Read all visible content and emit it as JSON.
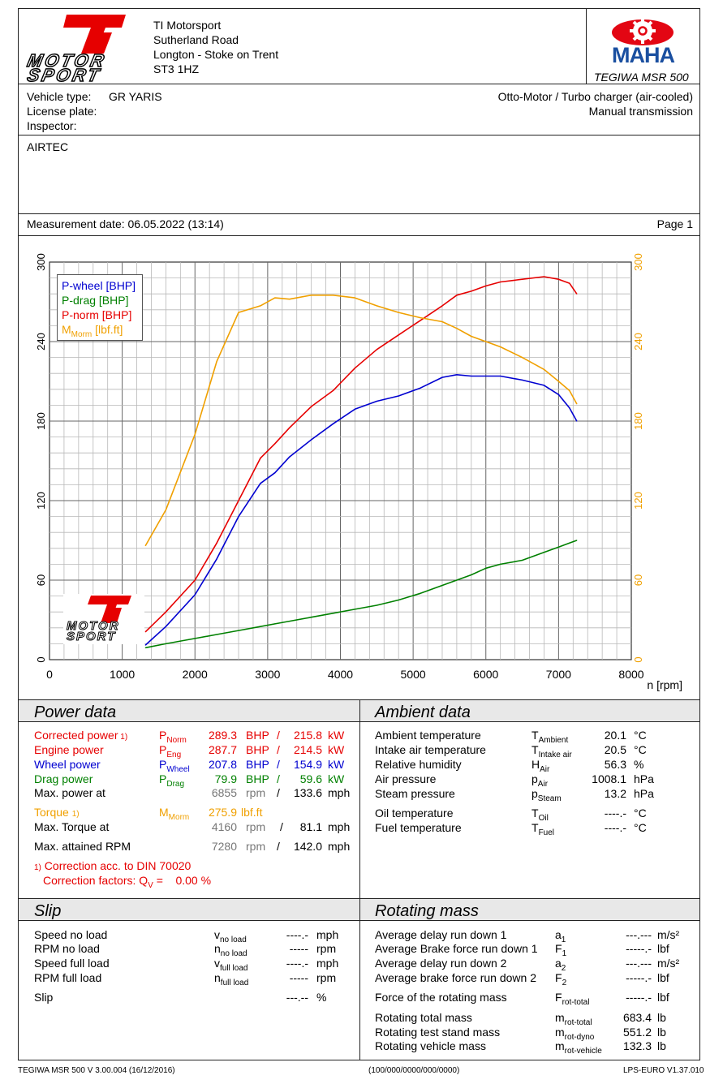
{
  "header": {
    "company": [
      "TI Motorsport",
      "Sutherland Road",
      "Longton - Stoke on Trent",
      "ST3 1HZ"
    ],
    "logo_text": [
      "MOTOR",
      "SPORT"
    ],
    "maha_text": "MAHA",
    "device": "TEGIWA MSR 500"
  },
  "vehicle": {
    "type_label": "Vehicle type:",
    "type_value": "GR YARIS",
    "plate_label": "License plate:",
    "inspector_label": "Inspector:",
    "engine": "Otto-Motor / Turbo charger (air-cooled)",
    "transmission": "Manual transmission"
  },
  "note": "AIRTEC",
  "measurement": {
    "date": "Measurement date: 06.05.2022 (13:14)",
    "page": "Page 1"
  },
  "chart_data": {
    "type": "line",
    "xlabel": "n [rpm]",
    "xlim": [
      0,
      8000
    ],
    "xticks": [
      "0",
      "1000",
      "2000",
      "3000",
      "4000",
      "5000",
      "6000",
      "7000",
      "8000"
    ],
    "ylim_left": [
      0,
      300
    ],
    "ylim_right": [
      0,
      300
    ],
    "yticks_left": [
      "0",
      "60",
      "120",
      "180",
      "240",
      "300"
    ],
    "yticks_right": [
      "0",
      "60",
      "120",
      "180",
      "240",
      "300"
    ],
    "grid": true,
    "legend_position": "top-left",
    "x": [
      1320,
      1600,
      2000,
      2300,
      2600,
      2900,
      3100,
      3300,
      3600,
      3900,
      4200,
      4500,
      4800,
      5100,
      5400,
      5600,
      5800,
      6000,
      6200,
      6500,
      6800,
      7000,
      7150,
      7250
    ],
    "series": [
      {
        "name": "P-wheel [BHP]",
        "color": "#0000d0",
        "values": [
          11,
          25,
          49,
          76,
          108,
          133,
          141,
          153,
          166,
          178,
          189,
          195,
          199,
          205,
          213,
          215,
          214,
          214,
          214,
          211,
          207,
          200,
          190,
          180
        ]
      },
      {
        "name": "P-drag [BHP]",
        "color": "#008000",
        "values": [
          9,
          12,
          16,
          19,
          22,
          25,
          27,
          29,
          32,
          35,
          38,
          41,
          45,
          50,
          56,
          60,
          64,
          69,
          72,
          75,
          81,
          85,
          88,
          90
        ]
      },
      {
        "name": "P-norm [BHP]",
        "color": "#e60000",
        "values": [
          21,
          36,
          60,
          88,
          120,
          152,
          163,
          175,
          191,
          203,
          220,
          234,
          245,
          256,
          267,
          275,
          278,
          282,
          285,
          287,
          289,
          287,
          284,
          276
        ]
      },
      {
        "name": "MMorm [lbf.ft]",
        "color": "#f0a000",
        "values": [
          86,
          113,
          170,
          225,
          262,
          267,
          273,
          272,
          275,
          275,
          273,
          267,
          262,
          258,
          255,
          250,
          244,
          240,
          236,
          228,
          219,
          210,
          203,
          193
        ]
      }
    ]
  },
  "legend": [
    {
      "base": "P-wheel [BHP]",
      "sub": "",
      "tail": ""
    },
    {
      "base": "P-drag [BHP]",
      "sub": "",
      "tail": ""
    },
    {
      "base": "P-norm [BHP]",
      "sub": "",
      "tail": ""
    },
    {
      "base": "M",
      "sub": "Morm",
      "tail": " [lbf.ft]"
    }
  ],
  "power": {
    "title": "Power data",
    "rows": [
      {
        "label": "Corrected power",
        "note": "1)",
        "sym": "P",
        "sub": "Norm",
        "v1": "289.3",
        "u1": "BHP",
        "slash": "/",
        "v2": "215.8",
        "u2": "kW",
        "color": "#e60000"
      },
      {
        "label": "Engine power",
        "note": "",
        "sym": "P",
        "sub": "Eng",
        "v1": "287.7",
        "u1": "BHP",
        "slash": "/",
        "v2": "214.5",
        "u2": "kW",
        "color": "#e60000"
      },
      {
        "label": "Wheel power",
        "note": "",
        "sym": "P",
        "sub": "Wheel",
        "v1": "207.8",
        "u1": "BHP",
        "slash": "/",
        "v2": "154.9",
        "u2": "kW",
        "color": "#0000d0"
      },
      {
        "label": "Drag power",
        "note": "",
        "sym": "P",
        "sub": "Drag",
        "v1": "79.9",
        "u1": "BHP",
        "slash": "/",
        "v2": "59.6",
        "u2": "kW",
        "color": "#008000"
      }
    ],
    "max_power": {
      "label": "Max. power at",
      "v1": "6855",
      "u1": "rpm",
      "slash": "/",
      "v2": "133.6",
      "u2": "mph"
    },
    "torque": {
      "label": "Torque",
      "note": "1)",
      "sym": "M",
      "sub": "Morm",
      "v1": "275.9",
      "u1": "lbf.ft"
    },
    "max_torque": {
      "label": "Max. Torque at",
      "v1": "4160",
      "u1": "rpm",
      "slash": "/",
      "v2": "81.1",
      "u2": "mph"
    },
    "max_rpm": {
      "label": "Max. attained RPM",
      "v1": "7280",
      "u1": "rpm",
      "slash": "/",
      "v2": "142.0",
      "u2": "mph"
    },
    "correction_note": "1)",
    "correction": "Correction acc. to DIN 70020",
    "factor_label": "Correction factors: Q",
    "factor_sub": "V",
    "factor_value": " =    0.00 %"
  },
  "ambient": {
    "title": "Ambient data",
    "rows": [
      {
        "label": "Ambient temperature",
        "sym": "T",
        "sub": "Ambient",
        "value": "20.1",
        "unit": "°C"
      },
      {
        "label": "Intake air temperature",
        "sym": "T",
        "sub": "Intake air",
        "value": "20.5",
        "unit": "°C"
      },
      {
        "label": "Relative humidity",
        "sym": "H",
        "sub": "Air",
        "value": "56.3",
        "unit": "%"
      },
      {
        "label": "Air pressure",
        "sym": "p",
        "sub": "Air",
        "value": "1008.1",
        "unit": "hPa"
      },
      {
        "label": "Steam pressure",
        "sym": "p",
        "sub": "Steam",
        "value": "13.2",
        "unit": "hPa"
      },
      {
        "label": "Oil temperature",
        "sym": "T",
        "sub": "Oil",
        "value": "----.-",
        "unit": "°C"
      },
      {
        "label": "Fuel temperature",
        "sym": "T",
        "sub": "Fuel",
        "value": "----.-",
        "unit": "°C"
      }
    ]
  },
  "slip": {
    "title": "Slip",
    "rows": [
      {
        "label": "Speed no load",
        "sym": "v",
        "sub": "no load",
        "value": "----.-",
        "unit": "mph"
      },
      {
        "label": "RPM no load",
        "sym": "n",
        "sub": "no load",
        "value": "-----",
        "unit": "rpm"
      },
      {
        "label": "Speed full load",
        "sym": "v",
        "sub": "full load",
        "value": "----.-",
        "unit": "mph"
      },
      {
        "label": "RPM full load",
        "sym": "n",
        "sub": "full load",
        "value": "-----",
        "unit": "rpm"
      },
      {
        "label": "Slip",
        "sym": "",
        "sub": "",
        "value": "---.--",
        "unit": "%"
      }
    ]
  },
  "rotating": {
    "title": "Rotating mass",
    "rows": [
      {
        "label": "Average delay run down 1",
        "sym": "a",
        "sub": "1",
        "value": "---.---",
        "unit": "m/s²"
      },
      {
        "label": "Average Brake force run down 1",
        "sym": "F",
        "sub": "1",
        "value": "-----.-",
        "unit": "lbf"
      },
      {
        "label": "Average delay run down 2",
        "sym": "a",
        "sub": "2",
        "value": "---.---",
        "unit": "m/s²"
      },
      {
        "label": "Average brake force run down 2",
        "sym": "F",
        "sub": "2",
        "value": "-----.-",
        "unit": "lbf"
      },
      {
        "label": "Force of the rotating mass",
        "sym": "F",
        "sub": "rot-total",
        "value": "-----.-",
        "unit": "lbf"
      },
      {
        "label": "Rotating total mass",
        "sym": "m",
        "sub": "rot-total",
        "value": "683.4",
        "unit": "lb"
      },
      {
        "label": "Rotating test stand mass",
        "sym": "m",
        "sub": "rot-dyno",
        "value": "551.2",
        "unit": "lb"
      },
      {
        "label": "Rotating vehicle mass",
        "sym": "m",
        "sub": "rot-vehicle",
        "value": "132.3",
        "unit": "lb"
      }
    ]
  },
  "footer": {
    "left": "TEGIWA MSR 500 V 3.00.004 (16/12/2016)",
    "center": "(100/000/0000/000/0000)",
    "right": "LPS-EURO V1.37.010"
  },
  "colors": {
    "red": "#e60000",
    "blue": "#0000d0",
    "green": "#008000",
    "orange": "#f0a000",
    "maha_red": "#e30613",
    "maha_blue": "#1a4fa0"
  }
}
